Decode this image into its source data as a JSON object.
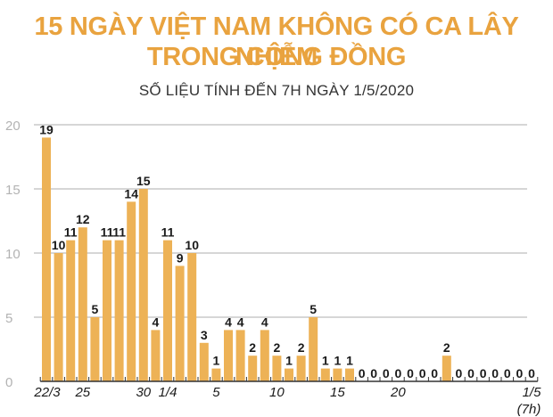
{
  "header": {
    "title_line1": "15 NGÀY VIỆT NAM KHÔNG CÓ CA LÂY NHIỄM",
    "title_line2": "TRONG CỘNG ĐỒNG",
    "subtitle": "SỐ LIỆU TÍNH ĐẾN 7H NGÀY 1/5/2020"
  },
  "colors": {
    "title": "#e9a33f",
    "bar": "#edb256",
    "grid": "#c8c8c8",
    "y_tick_label": "#b3b3b3",
    "value_label": "#1a1a1a"
  },
  "chart_data": {
    "type": "bar",
    "title": "15 NGÀY VIỆT NAM KHÔNG CÓ CA LÂY NHIỄM TRONG CỘNG ĐỒNG",
    "subtitle": "SỐ LIỆU TÍNH ĐẾN 7H NGÀY 1/5/2020",
    "xlabel": "",
    "ylabel": "",
    "ylim": [
      0,
      20
    ],
    "yticks": [
      0,
      5,
      10,
      15,
      20
    ],
    "grid": true,
    "legend": null,
    "categories": [
      "22/3",
      "23/3",
      "24/3",
      "25/3",
      "26/3",
      "27/3",
      "28/3",
      "29/3",
      "30/3",
      "31/3",
      "1/4",
      "2/4",
      "3/4",
      "4/4",
      "5/4",
      "6/4",
      "7/4",
      "8/4",
      "9/4",
      "10/4",
      "11/4",
      "12/4",
      "13/4",
      "14/4",
      "15/4",
      "16/4",
      "17/4",
      "18/4",
      "19/4",
      "20/4",
      "21/4",
      "22/4",
      "23/4",
      "24/4",
      "25/4",
      "26/4",
      "27/4",
      "28/4",
      "29/4",
      "30/4",
      "1/5 (7h)"
    ],
    "values": [
      19,
      10,
      11,
      12,
      5,
      11,
      11,
      14,
      15,
      4,
      11,
      9,
      10,
      3,
      1,
      4,
      4,
      2,
      4,
      2,
      1,
      2,
      5,
      1,
      1,
      1,
      0,
      0,
      0,
      0,
      0,
      0,
      0,
      2,
      0,
      0,
      0,
      0,
      0,
      0,
      0
    ],
    "x_tick_labels": [
      {
        "index": 0,
        "label": "22/3"
      },
      {
        "index": 3,
        "label": "25"
      },
      {
        "index": 8,
        "label": "30"
      },
      {
        "index": 10,
        "label": "1/4"
      },
      {
        "index": 14,
        "label": "5"
      },
      {
        "index": 19,
        "label": "10"
      },
      {
        "index": 24,
        "label": "15"
      },
      {
        "index": 29,
        "label": "20"
      },
      {
        "index": 40,
        "label": "1/5",
        "sublabel": "(7h)"
      }
    ]
  }
}
